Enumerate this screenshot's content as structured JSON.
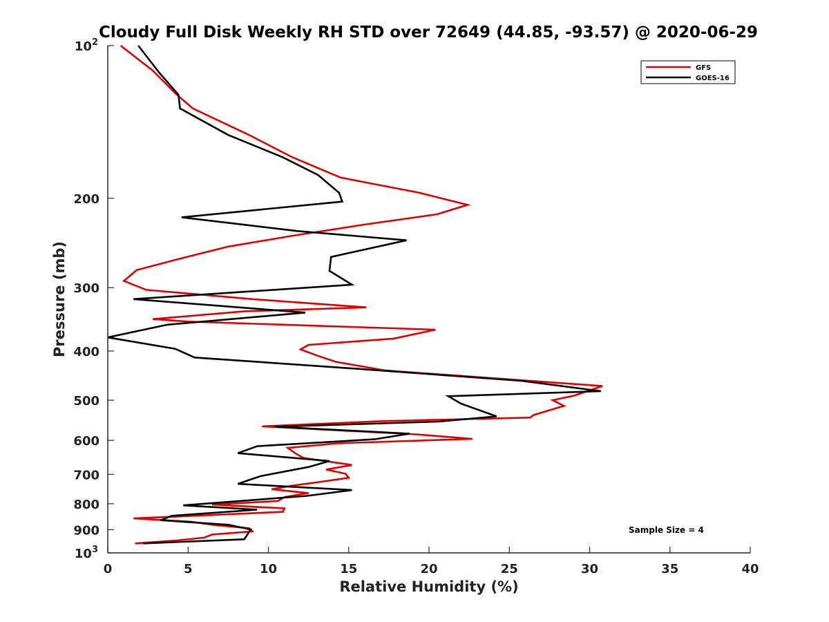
{
  "chart_data": {
    "type": "line",
    "title": "Cloudy Full Disk Weekly RH STD over 72649 (44.85, -93.57) @ 2020-06-29",
    "xlabel": "Relative Humidity (%)",
    "ylabel": "Pressure (mb)",
    "xlim": [
      0,
      40
    ],
    "ylim": [
      100,
      1000
    ],
    "y_scale": "log",
    "y_reversed": true,
    "x_ticks": [
      "0",
      "5",
      "10",
      "15",
      "20",
      "25",
      "30",
      "35",
      "40"
    ],
    "y_ticks": [
      {
        "value": 100,
        "label": "10",
        "sup": "2"
      },
      {
        "value": 200,
        "label": "200",
        "sup": ""
      },
      {
        "value": 300,
        "label": "300",
        "sup": ""
      },
      {
        "value": 400,
        "label": "400",
        "sup": ""
      },
      {
        "value": 500,
        "label": "500",
        "sup": ""
      },
      {
        "value": 600,
        "label": "600",
        "sup": ""
      },
      {
        "value": 700,
        "label": "700",
        "sup": ""
      },
      {
        "value": 800,
        "label": "800",
        "sup": ""
      },
      {
        "value": 900,
        "label": "900",
        "sup": ""
      },
      {
        "value": 1000,
        "label": "10",
        "sup": "3"
      }
    ],
    "grid": false,
    "legend_position": "top-right",
    "annotation": "Sample Size = 4",
    "series": [
      {
        "name": "GFS",
        "color": "#e00000",
        "points": [
          [
            0.8,
            100
          ],
          [
            2.8,
            112
          ],
          [
            4.3,
            125
          ],
          [
            5.3,
            133
          ],
          [
            8.8,
            150
          ],
          [
            11.5,
            166
          ],
          [
            14.5,
            182
          ],
          [
            19.4,
            195
          ],
          [
            22.4,
            206
          ],
          [
            20.5,
            215
          ],
          [
            15.7,
            226
          ],
          [
            11.5,
            237
          ],
          [
            7.5,
            249
          ],
          [
            4.5,
            263
          ],
          [
            1.8,
            277
          ],
          [
            1.0,
            291
          ],
          [
            2.4,
            303
          ],
          [
            9.0,
            316
          ],
          [
            16.1,
            328
          ],
          [
            8.5,
            334
          ],
          [
            2.8,
            346
          ],
          [
            5.0,
            350
          ],
          [
            20.4,
            363
          ],
          [
            17.8,
            378
          ],
          [
            12.5,
            389
          ],
          [
            12.0,
            397
          ],
          [
            13.0,
            408
          ],
          [
            14.2,
            420
          ],
          [
            17.3,
            437
          ],
          [
            30.8,
            469
          ],
          [
            29.0,
            490
          ],
          [
            27.7,
            500
          ],
          [
            28.4,
            513
          ],
          [
            26.5,
            535
          ],
          [
            26.3,
            541
          ],
          [
            17.0,
            550
          ],
          [
            9.6,
            563
          ],
          [
            19.2,
            584
          ],
          [
            22.7,
            596
          ],
          [
            14.3,
            608
          ],
          [
            11.2,
            621
          ],
          [
            11.7,
            637
          ],
          [
            12.2,
            650
          ],
          [
            15.2,
            671
          ],
          [
            13.6,
            685
          ],
          [
            14.8,
            698
          ],
          [
            15.0,
            711
          ],
          [
            13.3,
            724
          ],
          [
            11.5,
            737
          ],
          [
            10.2,
            749
          ],
          [
            12.5,
            762
          ],
          [
            11.0,
            776
          ],
          [
            10.6,
            790
          ],
          [
            6.5,
            803
          ],
          [
            11.0,
            817
          ],
          [
            10.9,
            830
          ],
          [
            6.8,
            841
          ],
          [
            1.6,
            855
          ],
          [
            5.2,
            868
          ],
          [
            6.6,
            881
          ],
          [
            8.8,
            894
          ],
          [
            9.0,
            907
          ],
          [
            6.5,
            920
          ],
          [
            6.0,
            933
          ],
          [
            4.3,
            945
          ],
          [
            1.7,
            958
          ]
        ]
      },
      {
        "name": "GOES-16",
        "color": "#000000",
        "points": [
          [
            1.9,
            100
          ],
          [
            3.2,
            113
          ],
          [
            4.4,
            125
          ],
          [
            4.5,
            133
          ],
          [
            7.5,
            150
          ],
          [
            10.9,
            166
          ],
          [
            13.1,
            180
          ],
          [
            14.4,
            195
          ],
          [
            14.6,
            203
          ],
          [
            4.6,
            218
          ],
          [
            11.8,
            232
          ],
          [
            18.6,
            242
          ],
          [
            13.9,
            261
          ],
          [
            13.8,
            278
          ],
          [
            15.2,
            296
          ],
          [
            1.6,
            316
          ],
          [
            12.3,
            336
          ],
          [
            3.7,
            355
          ],
          [
            0.0,
            376
          ],
          [
            4.2,
            396
          ],
          [
            5.4,
            412
          ],
          [
            14.8,
            432
          ],
          [
            25.8,
            458
          ],
          [
            30.7,
            480
          ],
          [
            21.2,
            491
          ],
          [
            22.0,
            508
          ],
          [
            24.2,
            538
          ],
          [
            20.6,
            551
          ],
          [
            10.4,
            564
          ],
          [
            18.8,
            582
          ],
          [
            16.6,
            597
          ],
          [
            9.3,
            616
          ],
          [
            8.1,
            636
          ],
          [
            13.8,
            659
          ],
          [
            12.5,
            677
          ],
          [
            9.5,
            706
          ],
          [
            8.1,
            731
          ],
          [
            15.2,
            752
          ],
          [
            12.4,
            772
          ],
          [
            4.7,
            806
          ],
          [
            9.3,
            822
          ],
          [
            4.0,
            845
          ],
          [
            3.3,
            862
          ],
          [
            7.5,
            880
          ],
          [
            8.9,
            899
          ],
          [
            8.5,
            940
          ],
          [
            2.2,
            958
          ]
        ]
      }
    ]
  }
}
